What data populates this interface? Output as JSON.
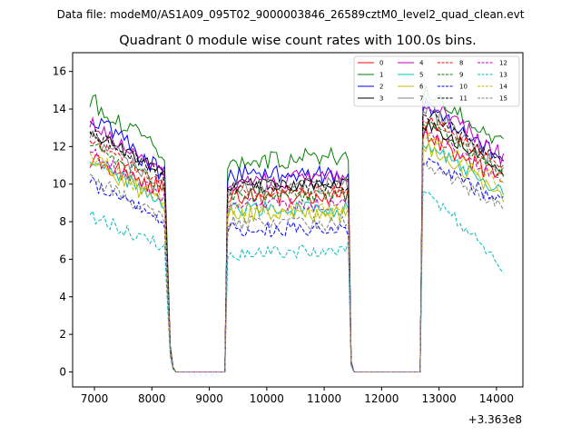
{
  "figure": {
    "suptitle": "Data file: modeM0/AS1A09_095T02_9000003846_26589cztM0_level2_quad_clean.evt",
    "offset_label": "+3.363e8"
  },
  "chart_data": {
    "type": "line",
    "title": "Quadrant 0 module wise count rates with 100.0s bins.",
    "xlabel": "",
    "ylabel": "",
    "x_offset": 336300000,
    "xlim": [
      6620,
      14460
    ],
    "ylim": [
      -0.8,
      17.0
    ],
    "x_ticks": [
      7000,
      8000,
      9000,
      10000,
      11000,
      12000,
      13000,
      14000
    ],
    "x_tick_labels": [
      "7000",
      "8000",
      "9000",
      "10000",
      "11000",
      "12000",
      "13000",
      "14000"
    ],
    "y_ticks": [
      0,
      2,
      4,
      6,
      8,
      10,
      12,
      14,
      16
    ],
    "y_tick_labels": [
      "0",
      "2",
      "4",
      "6",
      "8",
      "10",
      "12",
      "14",
      "16"
    ],
    "grid": false,
    "legend_position": "top-right",
    "legend_columns": 4,
    "segments": [
      {
        "start": 6920,
        "end": 8220,
        "step": 50
      },
      {
        "start": 9320,
        "end": 11420,
        "step": 50
      },
      {
        "start": 12720,
        "end": 14120,
        "step": 50
      }
    ],
    "gaps": [
      {
        "ramp_down": [
          8270,
          8320,
          8370
        ],
        "ramp_down_scale": [
          0.55,
          0.12,
          0.02
        ],
        "flat_end": 9270
      },
      {
        "ramp_down": [
          11470
        ],
        "ramp_down_scale": [
          0.05
        ],
        "flat_end": 12670
      }
    ],
    "series": [
      {
        "name": "0",
        "color": "#ff0000",
        "dash": "solid",
        "levels": [
          11.3,
          9.4,
          12.8
        ],
        "trend": [
          -1.6,
          0.0,
          -2.7
        ],
        "amplitude": 0.5
      },
      {
        "name": "1",
        "color": "#008000",
        "dash": "solid",
        "levels": [
          14.5,
          11.2,
          14.9
        ],
        "trend": [
          -2.9,
          0.3,
          -2.6
        ],
        "amplitude": 0.5
      },
      {
        "name": "2",
        "color": "#0000ff",
        "dash": "solid",
        "levels": [
          13.7,
          10.5,
          14.2
        ],
        "trend": [
          -3.2,
          0.0,
          -2.8
        ],
        "amplitude": 0.5
      },
      {
        "name": "3",
        "color": "#000000",
        "dash": "solid",
        "levels": [
          12.9,
          10.0,
          13.3
        ],
        "trend": [
          -2.4,
          0.0,
          -2.5
        ],
        "amplitude": 0.35
      },
      {
        "name": "4",
        "color": "#bf00bf",
        "dash": "solid",
        "levels": [
          13.3,
          10.1,
          14.6
        ],
        "trend": [
          -3.0,
          0.3,
          -3.2
        ],
        "amplitude": 0.5
      },
      {
        "name": "5",
        "color": "#00bfbf",
        "dash": "solid",
        "levels": [
          11.4,
          8.7,
          12.4
        ],
        "trend": [
          -2.5,
          0.0,
          -2.9
        ],
        "amplitude": 0.45
      },
      {
        "name": "6",
        "color": "#bfbf00",
        "dash": "solid",
        "levels": [
          11.2,
          8.4,
          12.2
        ],
        "trend": [
          -2.3,
          0.0,
          -2.8
        ],
        "amplitude": 0.45
      },
      {
        "name": "7",
        "color": "#808080",
        "dash": "solid",
        "levels": [
          12.6,
          9.9,
          14.2
        ],
        "trend": [
          -2.7,
          0.0,
          -3.6
        ],
        "amplitude": 0.45
      },
      {
        "name": "8",
        "color": "#ff0000",
        "dash": "dashed",
        "levels": [
          12.4,
          9.6,
          13.6
        ],
        "trend": [
          -2.5,
          0.0,
          -2.6
        ],
        "amplitude": 0.35
      },
      {
        "name": "9",
        "color": "#008000",
        "dash": "dashed",
        "levels": [
          12.1,
          9.4,
          13.4
        ],
        "trend": [
          -2.3,
          0.0,
          -2.8
        ],
        "amplitude": 0.35
      },
      {
        "name": "10",
        "color": "#0000ff",
        "dash": "dashed",
        "levels": [
          10.1,
          7.6,
          11.3
        ],
        "trend": [
          -2.2,
          0.0,
          -2.3
        ],
        "amplitude": 0.4
      },
      {
        "name": "11",
        "color": "#000000",
        "dash": "dashed",
        "levels": [
          12.8,
          9.9,
          13.9
        ],
        "trend": [
          -2.4,
          0.0,
          -2.7
        ],
        "amplitude": 0.35
      },
      {
        "name": "12",
        "color": "#bf00bf",
        "dash": "dashed",
        "levels": [
          11.7,
          8.9,
          13.0
        ],
        "trend": [
          -2.4,
          0.0,
          -2.8
        ],
        "amplitude": 0.35
      },
      {
        "name": "13",
        "color": "#00bfbf",
        "dash": "dashed",
        "levels": [
          8.3,
          6.2,
          9.8
        ],
        "trend": [
          -1.6,
          0.4,
          -4.2
        ],
        "amplitude": 0.35
      },
      {
        "name": "14",
        "color": "#bfbf00",
        "dash": "dashed",
        "levels": [
          11.6,
          8.6,
          12.6
        ],
        "trend": [
          -2.6,
          0.0,
          -2.7
        ],
        "amplitude": 0.4
      },
      {
        "name": "15",
        "color": "#808080",
        "dash": "dashed",
        "levels": [
          10.4,
          7.9,
          11.3
        ],
        "trend": [
          -2.3,
          0.0,
          -2.6
        ],
        "amplitude": 0.4
      }
    ]
  }
}
